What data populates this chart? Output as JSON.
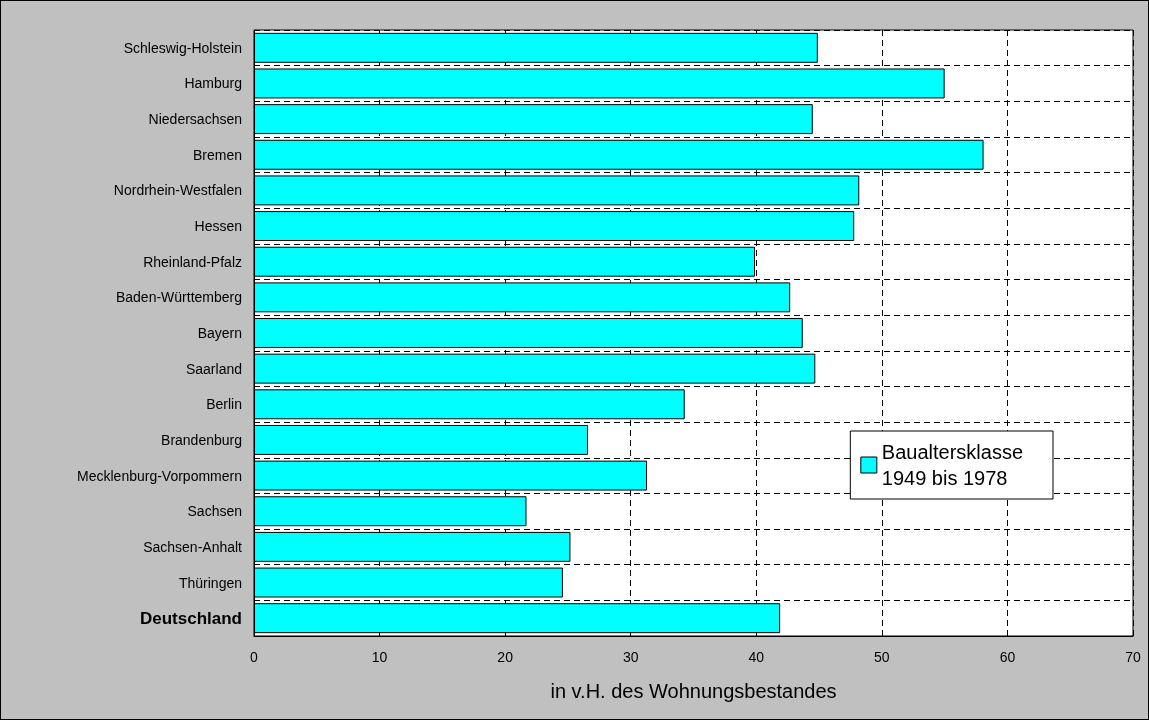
{
  "chart_data": {
    "type": "bar",
    "orientation": "horizontal",
    "xlabel": "in v.H. des Wohnungsbestandes",
    "categories": [
      "Schleswig-Holstein",
      "Hamburg",
      "Niedersachsen",
      "Bremen",
      "Nordrhein-Westfalen",
      "Hessen",
      "Rheinland-Pfalz",
      "Baden-Württemberg",
      "Bayern",
      "Saarland",
      "Berlin",
      "Brandenburg",
      "Mecklenburg-Vorpommern",
      "Sachsen",
      "Sachsen-Anhalt",
      "Thüringen",
      "Deutschland"
    ],
    "series": [
      {
        "name": "Baualtersklasse\n1949 bis 1978",
        "color": "#00ffff",
        "values": [
          44.9,
          55.0,
          44.5,
          58.1,
          48.2,
          47.8,
          39.9,
          42.7,
          43.7,
          44.7,
          34.3,
          26.6,
          31.3,
          21.7,
          25.2,
          24.6,
          41.9
        ]
      }
    ],
    "xlim": [
      0,
      70
    ],
    "xticks": [
      0,
      10,
      20,
      30,
      40,
      50,
      60,
      70
    ],
    "grid": true,
    "legend": "right"
  }
}
